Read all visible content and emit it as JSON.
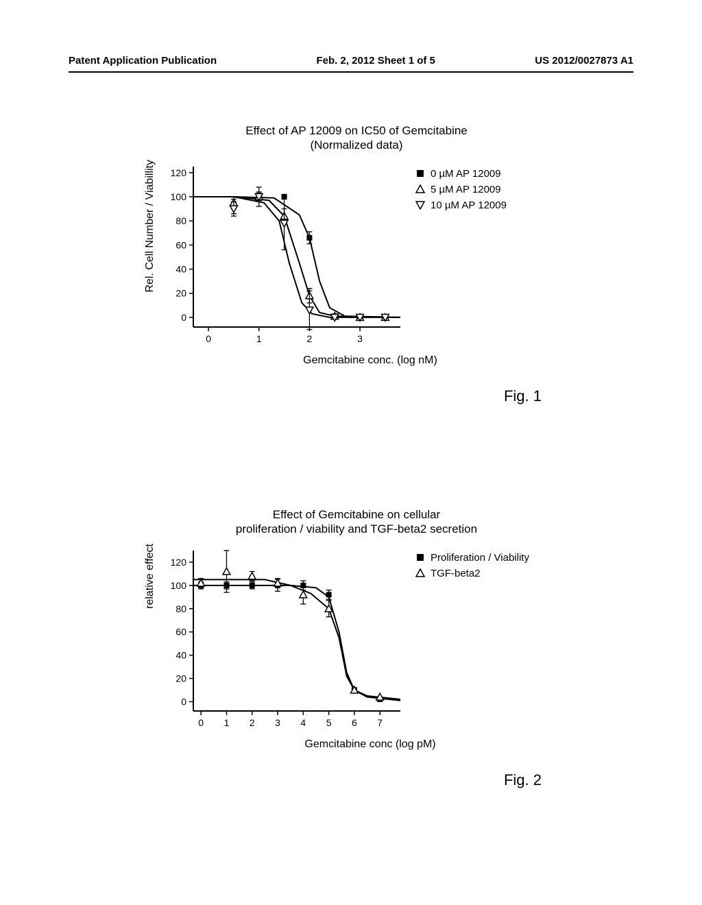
{
  "header": {
    "left": "Patent Application Publication",
    "center": "Feb. 2, 2012  Sheet 1 of 5",
    "right": "US 2012/0027873 A1"
  },
  "fig1": {
    "type": "line",
    "title_l1": "Effect of AP 12009 on IC50 of Gemcitabine",
    "title_l2": "(Normalized data)",
    "title_fontsize": 17,
    "xlabel": "Gemcitabine conc. (log nM)",
    "ylabel": "Rel. Cell Number / Viabillity",
    "label_fontsize": 16,
    "xlim": [
      -0.3,
      3.8
    ],
    "ylim": [
      -8,
      125
    ],
    "xticks": [
      0,
      1,
      2,
      3
    ],
    "yticks": [
      0,
      20,
      40,
      60,
      80,
      100,
      120
    ],
    "background_color": "#ffffff",
    "axis_color": "#000000",
    "axis_width": 2,
    "line_color": "#000000",
    "line_width": 2,
    "legend": [
      {
        "label": "0 µM AP 12009",
        "marker": "filled-square"
      },
      {
        "label": "5 µM AP 12009",
        "marker": "open-triangle-up"
      },
      {
        "label": "10 µM AP 12009",
        "marker": "open-triangle-down"
      }
    ],
    "series": [
      {
        "name": "0uM",
        "marker": "filled-square",
        "marker_size": 8,
        "x": [
          0.5,
          1.0,
          1.5,
          2.0,
          2.5,
          3.0,
          3.5
        ],
        "y": [
          92,
          100,
          100,
          66,
          1,
          0,
          0
        ],
        "err": [
          6,
          3,
          2,
          5,
          0,
          0,
          0
        ]
      },
      {
        "name": "5uM",
        "marker": "open-triangle-up",
        "marker_size": 9,
        "x": [
          0.5,
          1.0,
          1.5,
          2.0,
          2.5,
          3.0,
          3.5
        ],
        "y": [
          95,
          100,
          84,
          18,
          1,
          0,
          0
        ],
        "err": [
          5,
          8,
          6,
          6,
          0,
          0,
          0
        ]
      },
      {
        "name": "10uM",
        "marker": "open-triangle-down",
        "marker_size": 9,
        "x": [
          0.5,
          1.0,
          1.5,
          2.0,
          2.5,
          3.0,
          3.5
        ],
        "y": [
          90,
          100,
          78,
          6,
          0,
          0,
          0
        ],
        "err": [
          6,
          4,
          22,
          16,
          0,
          0,
          0
        ]
      }
    ],
    "curves": [
      {
        "pts": [
          [
            -0.3,
            100
          ],
          [
            0.5,
            100
          ],
          [
            1.3,
            99
          ],
          [
            1.8,
            85
          ],
          [
            2.0,
            66
          ],
          [
            2.2,
            30
          ],
          [
            2.4,
            8
          ],
          [
            2.7,
            1
          ],
          [
            3.8,
            0
          ]
        ]
      },
      {
        "pts": [
          [
            -0.3,
            100
          ],
          [
            0.5,
            100
          ],
          [
            1.2,
            97
          ],
          [
            1.5,
            84
          ],
          [
            1.8,
            45
          ],
          [
            2.0,
            18
          ],
          [
            2.2,
            4
          ],
          [
            2.5,
            1
          ],
          [
            3.8,
            0
          ]
        ]
      },
      {
        "pts": [
          [
            -0.3,
            100
          ],
          [
            0.5,
            100
          ],
          [
            1.1,
            95
          ],
          [
            1.4,
            80
          ],
          [
            1.6,
            45
          ],
          [
            1.85,
            12
          ],
          [
            2.05,
            3
          ],
          [
            2.4,
            0
          ],
          [
            3.8,
            0
          ]
        ]
      }
    ],
    "caption": "Fig. 1"
  },
  "fig2": {
    "type": "line",
    "title_l1": "Effect of Gemcitabine on cellular",
    "title_l2": "proliferation / viability and TGF-beta2 secretion",
    "title_fontsize": 17,
    "xlabel": "Gemcitabine conc (log pM)",
    "ylabel": "relative effect",
    "label_fontsize": 16,
    "xlim": [
      -0.3,
      7.8
    ],
    "ylim": [
      -8,
      130
    ],
    "xticks": [
      0,
      1,
      2,
      3,
      4,
      5,
      6,
      7
    ],
    "yticks": [
      0,
      20,
      40,
      60,
      80,
      100,
      120
    ],
    "background_color": "#ffffff",
    "axis_color": "#000000",
    "axis_width": 2,
    "line_color": "#000000",
    "line_width": 2,
    "legend": [
      {
        "label": "Proliferation / Viability",
        "marker": "filled-square"
      },
      {
        "label": "TGF-beta2",
        "marker": "open-triangle-up"
      }
    ],
    "series": [
      {
        "name": "prolif",
        "marker": "filled-square",
        "marker_size": 8,
        "x": [
          0,
          1,
          2,
          3,
          4,
          5,
          6,
          7
        ],
        "y": [
          100,
          100,
          100,
          100,
          100,
          92,
          10,
          2
        ],
        "err": [
          3,
          3,
          3,
          5,
          4,
          4,
          2,
          0
        ]
      },
      {
        "name": "tgf",
        "marker": "open-triangle-up",
        "marker_size": 9,
        "x": [
          0,
          1,
          2,
          3,
          4,
          5,
          6,
          7
        ],
        "y": [
          102,
          112,
          108,
          102,
          92,
          80,
          10,
          4
        ],
        "err": [
          4,
          18,
          4,
          4,
          8,
          7,
          2,
          0
        ]
      }
    ],
    "curves": [
      {
        "pts": [
          [
            -0.3,
            100
          ],
          [
            3.5,
            100
          ],
          [
            4.5,
            98
          ],
          [
            5.0,
            90
          ],
          [
            5.4,
            60
          ],
          [
            5.7,
            25
          ],
          [
            6.0,
            10
          ],
          [
            6.5,
            4
          ],
          [
            7.8,
            1
          ]
        ]
      },
      {
        "pts": [
          [
            -0.3,
            105
          ],
          [
            2.5,
            105
          ],
          [
            3.5,
            100
          ],
          [
            4.3,
            93
          ],
          [
            5.0,
            80
          ],
          [
            5.4,
            55
          ],
          [
            5.7,
            22
          ],
          [
            6.0,
            10
          ],
          [
            6.5,
            5
          ],
          [
            7.8,
            2
          ]
        ]
      }
    ],
    "caption": "Fig. 2"
  }
}
